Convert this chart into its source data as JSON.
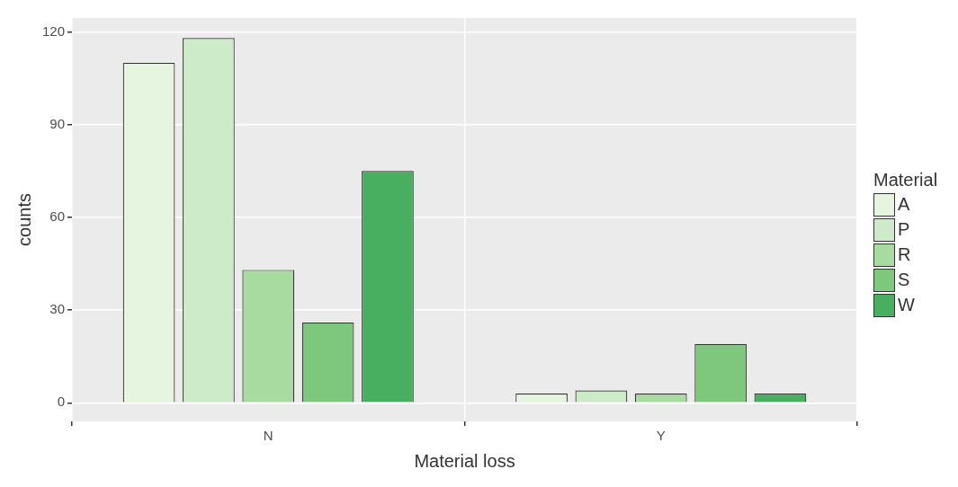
{
  "chart_data": {
    "type": "bar",
    "xlabel": "Material loss",
    "ylabel": "counts",
    "legend_title": "Material",
    "categories": [
      "N",
      "Y"
    ],
    "series": [
      {
        "name": "A",
        "color": "#e5f5e0",
        "values": [
          110,
          3
        ]
      },
      {
        "name": "P",
        "color": "#cdebc8",
        "values": [
          118,
          4
        ]
      },
      {
        "name": "R",
        "color": "#a8dba0",
        "values": [
          43,
          3
        ]
      },
      {
        "name": "S",
        "color": "#7dc87d",
        "values": [
          26,
          19
        ]
      },
      {
        "name": "W",
        "color": "#48ae60",
        "values": [
          75,
          3
        ]
      }
    ],
    "ylim": [
      -6,
      124.5
    ],
    "yticks": [
      0,
      30,
      60,
      90,
      120
    ],
    "grid": true,
    "legend": "right"
  }
}
